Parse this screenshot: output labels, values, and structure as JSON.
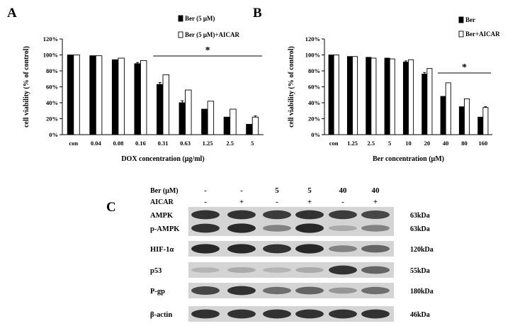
{
  "chart_data": [
    {
      "panel": "A",
      "type": "bar",
      "xlabel": "DOX concentration (μg/ml)",
      "ylabel": "cell viability (% of control)",
      "ylim": [
        0,
        120
      ],
      "yticks": [
        "0%",
        "20%",
        "40%",
        "60%",
        "80%",
        "100%",
        "120%"
      ],
      "categories": [
        "con",
        "0.04",
        "0.08",
        "0.16",
        "0.31",
        "0.63",
        "1.25",
        "2.5",
        "5"
      ],
      "series": [
        {
          "name": "Ber (5 μM)",
          "fill": "#000000",
          "values": [
            100,
            99,
            94,
            89,
            63,
            40,
            32,
            22,
            13
          ],
          "errors": [
            0,
            0,
            0,
            1.5,
            2.5,
            2.5,
            0,
            0,
            0
          ]
        },
        {
          "name": "Ber (5 μM)+AICAR",
          "fill": "#ffffff",
          "values": [
            100,
            99,
            96,
            93,
            75,
            56,
            42,
            32,
            22
          ],
          "errors": [
            0,
            0,
            0,
            0,
            0,
            0,
            0,
            0,
            1.5
          ]
        }
      ],
      "significance": {
        "label": "*",
        "from_category": 4,
        "to_category": 8
      },
      "legend": "top-right"
    },
    {
      "panel": "B",
      "type": "bar",
      "xlabel": "Ber concentration (μM)",
      "ylabel": "cell viability (% of control)",
      "ylim": [
        0,
        120
      ],
      "yticks": [
        "0%",
        "20%",
        "40%",
        "60%",
        "80%",
        "100%",
        "120%"
      ],
      "categories": [
        "con",
        "1.25",
        "2.5",
        "5",
        "10",
        "20",
        "40",
        "80",
        "160"
      ],
      "series": [
        {
          "name": "Ber",
          "fill": "#000000",
          "values": [
            100,
            98,
            97,
            96,
            91,
            76,
            48,
            35,
            22
          ],
          "errors": [
            0,
            0,
            0,
            0,
            1.5,
            2,
            0,
            0,
            0
          ]
        },
        {
          "name": "Ber+AICAR",
          "fill": "#ffffff",
          "values": [
            100,
            98,
            96,
            95,
            94,
            83,
            65,
            45,
            34
          ],
          "errors": [
            0,
            0,
            0,
            0,
            0,
            0,
            0,
            0,
            1
          ]
        }
      ],
      "significance": {
        "label": "*",
        "from_category": 6,
        "to_category": 8
      },
      "legend": "top-right"
    }
  ],
  "panel_letters": {
    "a": "A",
    "b": "B",
    "c": "C"
  },
  "blot": {
    "ber_label": "Ber (μM)",
    "aicar_label": "AICAR",
    "ber_values": [
      "-",
      "-",
      "5",
      "5",
      "40",
      "40"
    ],
    "aicar_values": [
      "-",
      "+",
      "-",
      "+",
      "-",
      "+"
    ],
    "rows": [
      {
        "label": "AMPK",
        "kda": "63kDa",
        "intensity": [
          0.85,
          0.85,
          0.8,
          0.85,
          0.8,
          0.75
        ]
      },
      {
        "label": "p-AMPK",
        "kda": "63kDa",
        "intensity": [
          0.85,
          0.9,
          0.45,
          0.9,
          0.25,
          0.45
        ]
      },
      {
        "label": "HIF-1α",
        "kda": "120kDa",
        "intensity": [
          0.9,
          0.9,
          0.85,
          0.9,
          0.45,
          0.6
        ]
      },
      {
        "label": "p53",
        "kda": "55kDa",
        "intensity": [
          0.2,
          0.25,
          0.2,
          0.25,
          0.85,
          0.6
        ]
      },
      {
        "label": "P-gp",
        "kda": "180kDa",
        "intensity": [
          0.75,
          0.85,
          0.55,
          0.6,
          0.35,
          0.55
        ]
      },
      {
        "label": "β-actin",
        "kda": "46kDa",
        "intensity": [
          0.85,
          0.85,
          0.85,
          0.85,
          0.85,
          0.85
        ]
      }
    ]
  }
}
